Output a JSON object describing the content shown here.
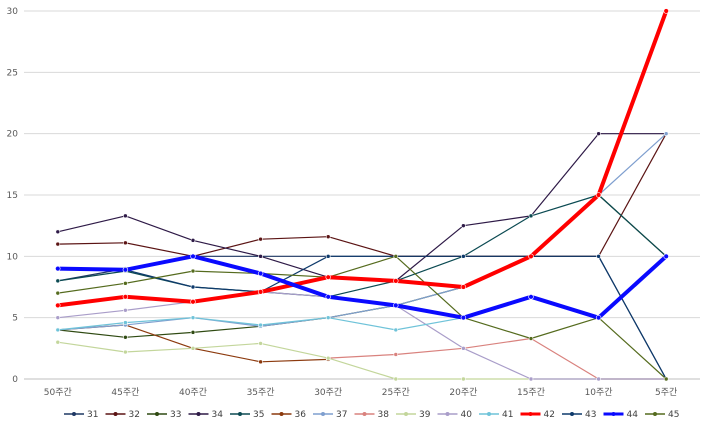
{
  "chart_data": {
    "type": "line",
    "title": "",
    "xlabel": "",
    "ylabel": "",
    "ylim": [
      0,
      30
    ],
    "yticks": [
      0,
      5,
      10,
      15,
      20,
      25,
      30
    ],
    "grid": "horizontal",
    "legend_position": "bottom",
    "categories": [
      "50주간",
      "45주간",
      "40주간",
      "35주간",
      "30주간",
      "25주간",
      "20주간",
      "15주간",
      "10주간",
      "5주간"
    ],
    "series": [
      {
        "name": "31",
        "color": "#1f3864",
        "width": 1.2,
        "values": [
          8.0,
          9.0,
          10.0,
          10.0,
          10.0,
          10.0,
          10.0,
          10.0,
          10.0,
          0
        ]
      },
      {
        "name": "32",
        "color": "#5b1414",
        "width": 1.2,
        "values": [
          11.0,
          11.1,
          10.0,
          11.4,
          11.6,
          10.0,
          10.0,
          10.0,
          10.0,
          20.0
        ]
      },
      {
        "name": "33",
        "color": "#2f4a12",
        "width": 1.2,
        "values": [
          4.0,
          3.4,
          3.8,
          4.3,
          5.0,
          6.0,
          7.5,
          10.0,
          15.0,
          10.0
        ]
      },
      {
        "name": "34",
        "color": "#2e1a47",
        "width": 1.2,
        "values": [
          12.0,
          13.3,
          11.3,
          10.0,
          8.3,
          8.0,
          12.5,
          13.3,
          20.0,
          20.0
        ]
      },
      {
        "name": "35",
        "color": "#0b4a52",
        "width": 1.2,
        "values": [
          8.0,
          8.8,
          7.5,
          7.1,
          6.7,
          8.0,
          10.0,
          13.3,
          15.0,
          10.0
        ]
      },
      {
        "name": "36",
        "color": "#8c3a0e",
        "width": 1.2,
        "values": [
          4.0,
          4.4,
          2.5,
          1.4,
          1.6,
          null,
          null,
          null,
          null,
          null
        ]
      },
      {
        "name": "37",
        "color": "#7f9fcf",
        "width": 1.2,
        "values": [
          4.0,
          4.4,
          5.0,
          4.3,
          5.0,
          6.0,
          7.5,
          10.0,
          15.0,
          20.0
        ]
      },
      {
        "name": "38",
        "color": "#d9827e",
        "width": 1.2,
        "values": [
          null,
          null,
          null,
          null,
          1.7,
          2.0,
          2.5,
          3.3,
          0,
          0
        ]
      },
      {
        "name": "39",
        "color": "#c3d69b",
        "width": 1.2,
        "values": [
          3.0,
          2.2,
          2.5,
          2.9,
          1.7,
          0,
          0,
          0,
          0,
          0
        ]
      },
      {
        "name": "40",
        "color": "#a99dc9",
        "width": 1.2,
        "values": [
          5.0,
          5.6,
          6.3,
          7.1,
          6.7,
          6.0,
          2.5,
          0,
          0,
          0
        ]
      },
      {
        "name": "41",
        "color": "#6fc3d9",
        "width": 1.2,
        "values": [
          4.0,
          4.6,
          5.0,
          4.4,
          5.0,
          4.0,
          5.0,
          6.7,
          5.0,
          null
        ]
      },
      {
        "name": "42",
        "color": "#ff0000",
        "width": 4,
        "values": [
          6.0,
          6.7,
          6.3,
          7.1,
          8.3,
          8.0,
          7.5,
          10.0,
          15.0,
          30.0
        ]
      },
      {
        "name": "43",
        "color": "#0e3a6b",
        "width": 1.2,
        "values": [
          9.0,
          8.9,
          7.5,
          7.1,
          10.0,
          10.0,
          10.0,
          10.0,
          10.0,
          0
        ]
      },
      {
        "name": "44",
        "color": "#0a0aff",
        "width": 4,
        "values": [
          9.0,
          8.9,
          10.0,
          8.6,
          6.7,
          6.0,
          5.0,
          6.7,
          5.0,
          10.0
        ]
      },
      {
        "name": "45",
        "color": "#556b1e",
        "width": 1.2,
        "values": [
          7.0,
          7.8,
          8.8,
          8.6,
          8.3,
          10.0,
          5.0,
          3.3,
          5.0,
          0
        ]
      }
    ]
  },
  "colors": {
    "grid": "#d9d9d9",
    "axis": "#bfbfbf",
    "background": "#ffffff"
  }
}
